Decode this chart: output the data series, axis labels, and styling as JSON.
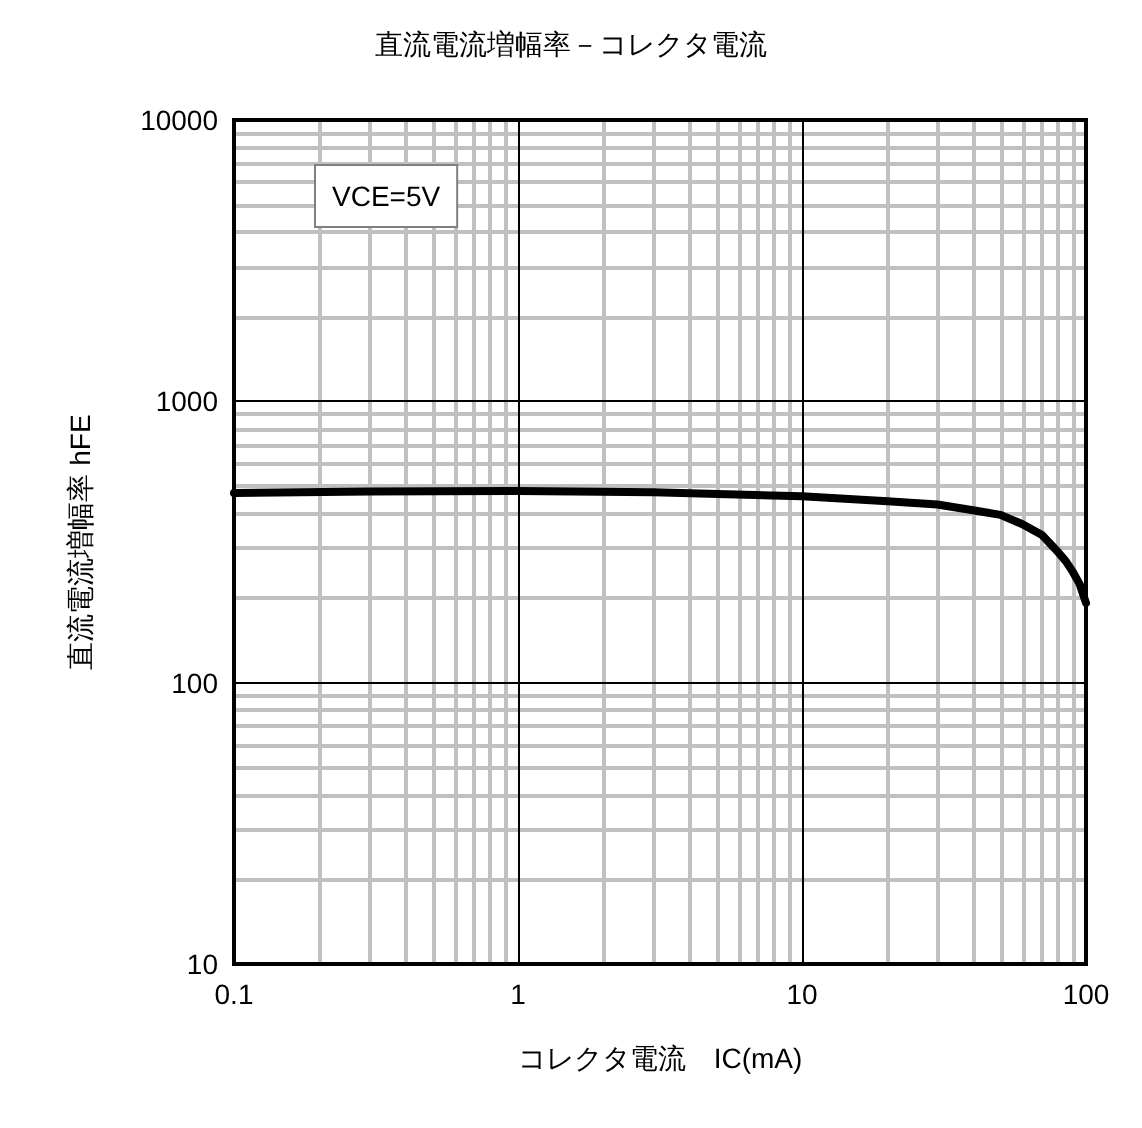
{
  "chart_data": {
    "type": "line",
    "title": "直流電流増幅率－コレクタ電流",
    "xlabel": "コレクタ電流　IC(mA)",
    "ylabel": "直流電流増幅率 hFE",
    "annotations": [
      "VCE=5V"
    ],
    "x": [
      0.1,
      0.3,
      1,
      3,
      10,
      20,
      30,
      40,
      50,
      60,
      70,
      80,
      85,
      90,
      95,
      100
    ],
    "series": [
      {
        "color": "#000000",
        "values": [
          472,
          478,
          480,
          475,
          460,
          441,
          430,
          410,
          395,
          365,
          335,
          290,
          270,
          247,
          224,
          192
        ]
      }
    ],
    "log": "xy",
    "xlim": [
      0.1,
      100
    ],
    "ylim": [
      10,
      10000
    ],
    "xticks": [
      0.1,
      1,
      10,
      100
    ],
    "yticks": [
      10,
      100,
      1000,
      10000
    ],
    "grid": true,
    "marker": "none",
    "line_style": "solid"
  }
}
